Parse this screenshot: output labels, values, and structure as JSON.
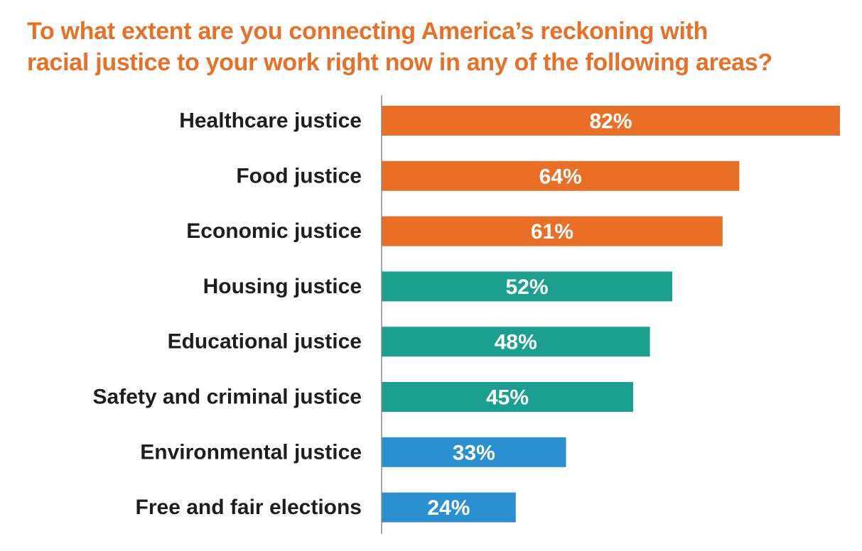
{
  "chart_data": {
    "type": "bar",
    "orientation": "horizontal",
    "title_lines": [
      "To what extent are you connecting America’s reckoning with",
      "racial justice to your work right now in any of the following areas?"
    ],
    "categories": [
      "Healthcare justice",
      "Food justice",
      "Economic justice",
      "Housing justice",
      "Educational justice",
      "Safety and criminal justice",
      "Environmental justice",
      "Free and fair elections"
    ],
    "values": [
      82,
      64,
      61,
      52,
      48,
      45,
      33,
      24
    ],
    "value_labels": [
      "82%",
      "64%",
      "61%",
      "52%",
      "48%",
      "45%",
      "33%",
      "24%"
    ],
    "bar_colors": [
      "#e86f25",
      "#e86f25",
      "#e86f25",
      "#1ba08f",
      "#1ba08f",
      "#1ba08f",
      "#2a90d0",
      "#2a90d0"
    ],
    "xlim": [
      0,
      82
    ],
    "grid": false,
    "axis_color": "#888888"
  }
}
